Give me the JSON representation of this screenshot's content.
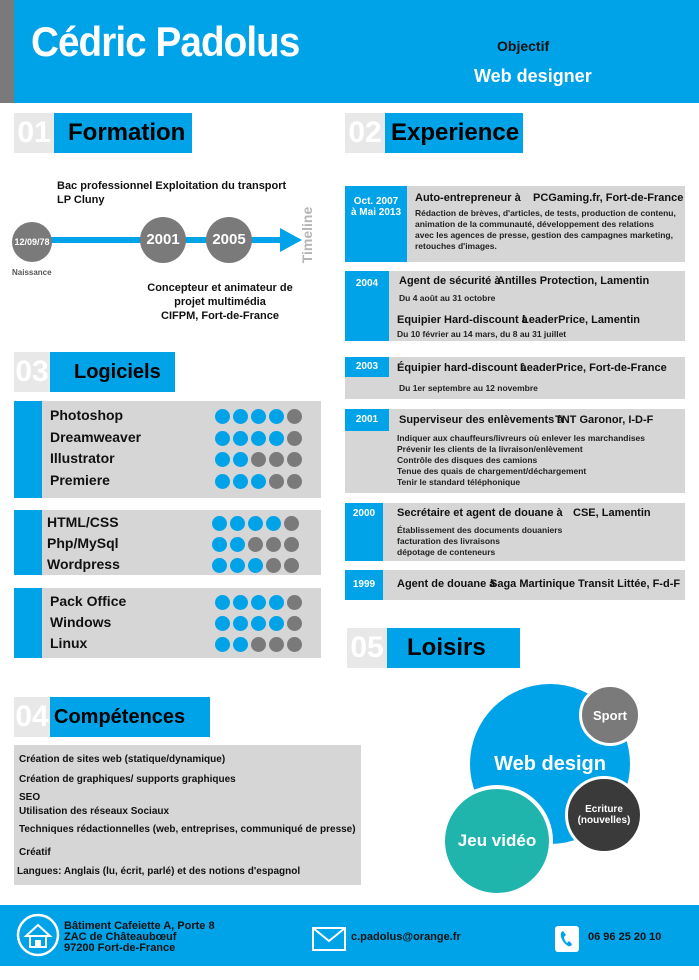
{
  "header": {
    "name": "Cédric Padolus",
    "objective_label": "Objectif",
    "objective_value": "Web designer"
  },
  "sections": {
    "formation": {
      "num": "01",
      "title": "Formation"
    },
    "experience": {
      "num": "02",
      "title": "Experience"
    },
    "logiciels": {
      "num": "03",
      "title": "Logiciels"
    },
    "competences": {
      "num": "04",
      "title": "Compétences"
    },
    "loisirs": {
      "num": "05",
      "title": "Loisirs"
    }
  },
  "formation": {
    "birth_date": "12/09/78",
    "birth_label": "Naissance",
    "year1": "2001",
    "year2": "2005",
    "timeline_label": "Timeline",
    "top_text_line1": "Bac professionnel Exploitation du transport",
    "top_text_line2": "LP Cluny",
    "bottom_text_line1": "Concepteur et animateur de",
    "bottom_text_line2": "projet multimédia",
    "bottom_text_line3": "CIFPM, Fort-de-France"
  },
  "logiciels": {
    "group1": [
      {
        "name": "Photoshop",
        "level": 4
      },
      {
        "name": "Dreamweaver",
        "level": 4
      },
      {
        "name": "Illustrator",
        "level": 2
      },
      {
        "name": "Premiere",
        "level": 3
      }
    ],
    "group2": [
      {
        "name": "HTML/CSS",
        "level": 4
      },
      {
        "name": "Php/MySql",
        "level": 2
      },
      {
        "name": "Wordpress",
        "level": 3
      }
    ],
    "group3": [
      {
        "name": "Pack Office",
        "level": 4
      },
      {
        "name": "Windows",
        "level": 4
      },
      {
        "name": "Linux",
        "level": 2
      }
    ]
  },
  "experience": {
    "e1": {
      "date_line1": "Oct. 2007",
      "date_line2": "à Mai 2013",
      "title": "Auto-entrepreneur à",
      "company": "PCGaming.fr, Fort-de-France",
      "desc": [
        "Rédaction de brèves, d'articles, de tests, production de contenu,",
        "animation de la communauté, développement des relations",
        "avec les agences de presse, gestion des campagnes marketing,",
        "retouches d'images."
      ]
    },
    "e2": {
      "date": "2004",
      "title": "Agent de sécurité à",
      "company": "Antilles Protection, Lamentin",
      "period": "Du 4 août au 31 octobre",
      "title2": "Equipier Hard-discount à",
      "company2": "LeaderPrice, Lamentin",
      "period2": "Du 10 février au 14 mars, du 8 au 31 juillet"
    },
    "e3": {
      "date": "2003",
      "title": "Équipier hard-discount à",
      "company": "LeaderPrice, Fort-de-France",
      "period": "Du 1er septembre au 12 novembre"
    },
    "e4": {
      "date": "2001",
      "title": "Superviseur des enlèvements à",
      "company": "TNT Garonor, I-D-F",
      "desc": [
        "Indiquer aux chauffeurs/livreurs où enlever les marchandises",
        "Prévenir les clients de la livraison/enlèvement",
        "Contrôle des disques des camions",
        "Tenue des quais de chargement/déchargement",
        "Tenir le standard téléphonique"
      ]
    },
    "e5": {
      "date": "2000",
      "title": "Secrétaire et agent de douane à",
      "company": "CSE, Lamentin",
      "desc": [
        "Établissement des documents douaniers",
        "facturation des livraisons",
        "dépotage de conteneurs"
      ]
    },
    "e6": {
      "date": "1999",
      "title": "Agent de douane à",
      "company": "Saga Martinique Transit Littée, F-d-F"
    }
  },
  "competences": [
    "Création de sites web (statique/dynamique)",
    "Création de graphiques/ supports graphiques",
    "SEO",
    "Utilisation des réseaux Sociaux",
    "Techniques rédactionnelles (web, entreprises, communiqué de presse)",
    "Créatif",
    "Langues: Anglais (lu, écrit, parlé) et des notions d'espagnol"
  ],
  "loisirs": {
    "web_design": "Web design",
    "sport": "Sport",
    "ecriture_line1": "Ecriture",
    "ecriture_line2": "(nouvelles)",
    "jeu_video": "Jeu vidéo"
  },
  "footer": {
    "address_line1": "Bâtiment Cafeiette A, Porte 8",
    "address_line2": "ZAC de Châteaubœuf",
    "address_line3": "97200 Fort-de-France",
    "email": "c.padolus@orange.fr",
    "phone": "06 96 25 20 10"
  },
  "colors": {
    "accent": "#00a3e8",
    "gray": "#7a7a7a",
    "light_gray": "#d6d6d6",
    "teal": "#1fb5ad",
    "dark": "#3a3a3a"
  },
  "icons": [
    "house-icon",
    "envelope-icon",
    "phone-icon"
  ]
}
